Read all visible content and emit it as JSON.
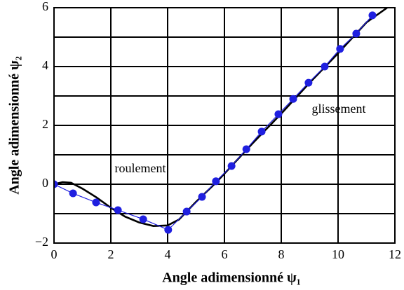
{
  "chart_data": {
    "type": "line",
    "xlabel": "Angle adimensionné ψ₁",
    "ylabel": "Angle adimensionné ψ₂",
    "annotations": [
      "roulement",
      "glissement"
    ],
    "xlim": [
      0,
      12
    ],
    "xticks": [
      0,
      2,
      4,
      6,
      8,
      10,
      12
    ],
    "ylim": [
      -2,
      6
    ],
    "yticks": [
      {
        "value": -2,
        "label": "−2"
      },
      0,
      2,
      4,
      6
    ],
    "yminor": [
      -1,
      1,
      3,
      5
    ],
    "grid": true,
    "series": [
      {
        "color": "#000000",
        "markers": false,
        "x": [
          0,
          0.3,
          0.6,
          1,
          1.5,
          2,
          2.5,
          3,
          3.5,
          4,
          4.4,
          5,
          5.7,
          7,
          8,
          9,
          10,
          11,
          11.73
        ],
        "values": [
          0,
          0.07,
          0.05,
          -0.15,
          -0.45,
          -0.8,
          -1.1,
          -1.3,
          -1.42,
          -1.4,
          -1.2,
          -0.6,
          0.05,
          1.4,
          2.4,
          3.45,
          4.45,
          5.5,
          6
        ]
      },
      {
        "color": "#1f1fe0",
        "markers": true,
        "x": [
          0,
          0.67,
          1.48,
          2.25,
          3.14,
          4.02,
          4.67,
          5.21,
          5.7,
          6.25,
          6.77,
          7.31,
          7.9,
          8.42,
          8.96,
          9.53,
          10.07,
          10.64,
          11.21
        ],
        "values": [
          0,
          -0.31,
          -0.62,
          -0.88,
          -1.19,
          -1.55,
          -0.93,
          -0.43,
          0.1,
          0.62,
          1.19,
          1.79,
          2.38,
          2.9,
          3.45,
          4.0,
          4.6,
          5.12,
          5.74
        ]
      }
    ]
  }
}
